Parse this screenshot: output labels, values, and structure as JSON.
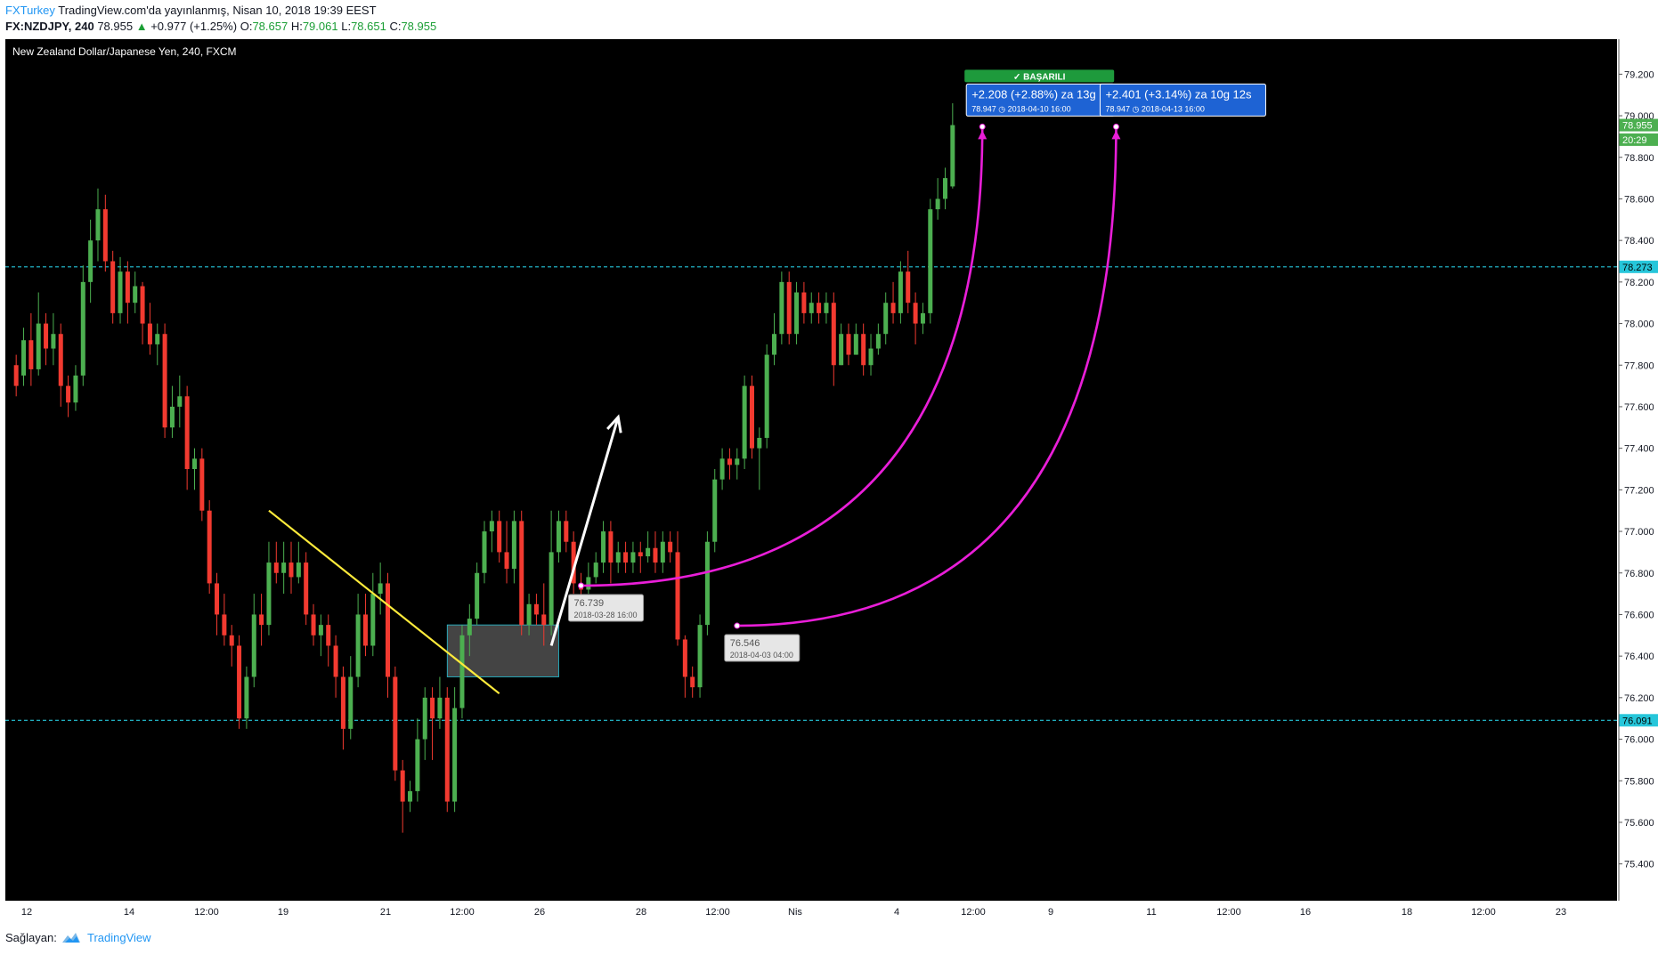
{
  "header": {
    "publisher": "FXTurkey",
    "published_text": "TradingView.com'da yayınlanmış, Nisan 10, 2018 19:39 EEST",
    "symbol": "FX:NZDJPY, 240",
    "last": "78.955",
    "change": "+0.977 (+1.25%)",
    "o_label": "O:",
    "o": "78.657",
    "h_label": "H:",
    "h": "79.061",
    "l_label": "L:",
    "l": "78.651",
    "c_label": "C:",
    "c": "78.955"
  },
  "footer": {
    "provider_label": "Sağlayan:",
    "provider_name": "TradingView"
  },
  "colors": {
    "background": "#000000",
    "bull": "#4caf50",
    "bear": "#f23a30",
    "level_line": "#26c6da",
    "trendline": "#ffeb3b",
    "arc": "#e91ed8",
    "arrow": "#ffffff",
    "zone": "#444444",
    "badge_green": "#1e9a3c",
    "badge_blue": "#1e63d4"
  },
  "chart_data": {
    "type": "candlestick",
    "title": "New Zealand Dollar/Japanese Yen, 240, FXCM",
    "ylim": [
      75.3,
      79.3
    ],
    "y_ticks": [
      "79.200",
      "79.000",
      "78.800",
      "78.600",
      "78.400",
      "78.200",
      "78.000",
      "77.800",
      "77.600",
      "77.400",
      "77.200",
      "77.000",
      "76.800",
      "76.600",
      "76.400",
      "76.200",
      "76.000",
      "75.800",
      "75.600",
      "75.400"
    ],
    "x_ticks": [
      "12",
      "14",
      "12:00",
      "19",
      "21",
      "12:00",
      "26",
      "28",
      "12:00",
      "Nis",
      "4",
      "12:00",
      "9",
      "11",
      "12:00",
      "16",
      "18",
      "12:00",
      "23"
    ],
    "price_labels": {
      "last": "78.955",
      "countdown": "20:29",
      "level_high": "78.273",
      "level_low": "76.091"
    },
    "levels": [
      78.273,
      76.091
    ],
    "candles": [
      [
        77.8,
        77.7,
        77.85,
        77.65
      ],
      [
        77.75,
        77.92,
        77.98,
        77.7
      ],
      [
        77.92,
        77.78,
        78.05,
        77.7
      ],
      [
        77.78,
        78.0,
        78.15,
        77.75
      ],
      [
        78.0,
        77.88,
        78.05,
        77.8
      ],
      [
        77.88,
        77.95,
        78.05,
        77.8
      ],
      [
        77.95,
        77.7,
        78.0,
        77.6
      ],
      [
        77.7,
        77.62,
        77.75,
        77.55
      ],
      [
        77.62,
        77.75,
        77.8,
        77.58
      ],
      [
        77.75,
        78.2,
        78.28,
        77.7
      ],
      [
        78.2,
        78.4,
        78.5,
        78.1
      ],
      [
        78.4,
        78.55,
        78.65,
        78.3
      ],
      [
        78.55,
        78.3,
        78.62,
        78.25
      ],
      [
        78.3,
        78.05,
        78.35,
        78.0
      ],
      [
        78.05,
        78.25,
        78.32,
        78.0
      ],
      [
        78.25,
        78.1,
        78.3,
        78.0
      ],
      [
        78.1,
        78.18,
        78.25,
        78.05
      ],
      [
        78.18,
        78.0,
        78.2,
        77.9
      ],
      [
        78.0,
        77.9,
        78.1,
        77.85
      ],
      [
        77.9,
        77.95,
        78.0,
        77.8
      ],
      [
        77.95,
        77.5,
        78.0,
        77.45
      ],
      [
        77.5,
        77.6,
        77.7,
        77.45
      ],
      [
        77.6,
        77.65,
        77.75,
        77.5
      ],
      [
        77.65,
        77.3,
        77.7,
        77.2
      ],
      [
        77.3,
        77.35,
        77.4,
        77.2
      ],
      [
        77.35,
        77.1,
        77.4,
        77.05
      ],
      [
        77.1,
        76.75,
        77.15,
        76.7
      ],
      [
        76.75,
        76.6,
        76.8,
        76.5
      ],
      [
        76.6,
        76.5,
        76.7,
        76.45
      ],
      [
        76.5,
        76.45,
        76.55,
        76.35
      ],
      [
        76.45,
        76.1,
        76.5,
        76.05
      ],
      [
        76.1,
        76.3,
        76.35,
        76.05
      ],
      [
        76.3,
        76.6,
        76.7,
        76.25
      ],
      [
        76.6,
        76.55,
        76.7,
        76.45
      ],
      [
        76.55,
        76.85,
        76.95,
        76.5
      ],
      [
        76.85,
        76.8,
        76.95,
        76.75
      ],
      [
        76.8,
        76.85,
        76.95,
        76.7
      ],
      [
        76.85,
        76.78,
        76.95,
        76.7
      ],
      [
        76.78,
        76.85,
        76.95,
        76.75
      ],
      [
        76.85,
        76.6,
        76.9,
        76.55
      ],
      [
        76.6,
        76.5,
        76.65,
        76.45
      ],
      [
        76.5,
        76.55,
        76.6,
        76.4
      ],
      [
        76.55,
        76.45,
        76.6,
        76.35
      ],
      [
        76.45,
        76.3,
        76.5,
        76.2
      ],
      [
        76.3,
        76.05,
        76.35,
        75.95
      ],
      [
        76.05,
        76.3,
        76.4,
        76.0
      ],
      [
        76.3,
        76.6,
        76.7,
        76.25
      ],
      [
        76.6,
        76.45,
        76.7,
        76.4
      ],
      [
        76.45,
        76.7,
        76.8,
        76.4
      ],
      [
        76.7,
        76.75,
        76.85,
        76.6
      ],
      [
        76.75,
        76.3,
        76.8,
        76.2
      ],
      [
        76.3,
        75.85,
        76.35,
        75.8
      ],
      [
        75.85,
        75.7,
        75.9,
        75.55
      ],
      [
        75.7,
        75.75,
        75.8,
        75.65
      ],
      [
        75.75,
        76.0,
        76.1,
        75.7
      ],
      [
        76.0,
        76.2,
        76.25,
        75.9
      ],
      [
        76.2,
        76.1,
        76.25,
        75.9
      ],
      [
        76.1,
        76.2,
        76.3,
        76.05
      ],
      [
        76.2,
        75.7,
        76.25,
        75.65
      ],
      [
        75.7,
        76.15,
        76.25,
        75.65
      ],
      [
        76.15,
        76.5,
        76.55,
        76.1
      ],
      [
        76.5,
        76.58,
        76.65,
        76.4
      ],
      [
        76.58,
        76.8,
        76.85,
        76.55
      ],
      [
        76.8,
        77.0,
        77.05,
        76.75
      ],
      [
        77.0,
        77.05,
        77.1,
        76.9
      ],
      [
        77.05,
        76.9,
        77.1,
        76.85
      ],
      [
        76.9,
        76.82,
        77.05,
        76.75
      ],
      [
        76.82,
        77.05,
        77.1,
        76.75
      ],
      [
        77.05,
        76.55,
        77.1,
        76.5
      ],
      [
        76.55,
        76.65,
        76.7,
        76.5
      ],
      [
        76.65,
        76.6,
        76.7,
        76.55
      ],
      [
        76.6,
        76.55,
        76.75,
        76.45
      ],
      [
        76.55,
        76.9,
        77.1,
        76.5
      ],
      [
        76.9,
        77.05,
        77.1,
        76.85
      ],
      [
        77.05,
        76.95,
        77.1,
        76.9
      ],
      [
        76.95,
        76.75,
        77.0,
        76.7
      ],
      [
        76.75,
        76.72,
        76.8,
        76.65
      ],
      [
        76.72,
        76.78,
        76.85,
        76.7
      ],
      [
        76.78,
        76.85,
        76.9,
        76.75
      ],
      [
        76.85,
        77.0,
        77.05,
        76.8
      ],
      [
        77.0,
        76.85,
        77.05,
        76.75
      ],
      [
        76.85,
        76.9,
        76.95,
        76.8
      ],
      [
        76.9,
        76.85,
        76.95,
        76.8
      ],
      [
        76.85,
        76.9,
        76.95,
        76.8
      ],
      [
        76.9,
        76.88,
        76.95,
        76.8
      ],
      [
        76.88,
        76.92,
        77.0,
        76.85
      ],
      [
        76.92,
        76.85,
        77.0,
        76.8
      ],
      [
        76.85,
        76.95,
        77.0,
        76.8
      ],
      [
        76.95,
        76.9,
        77.0,
        76.85
      ],
      [
        76.9,
        76.48,
        77.0,
        76.45
      ],
      [
        76.48,
        76.3,
        76.5,
        76.2
      ],
      [
        76.3,
        76.25,
        76.35,
        76.2
      ],
      [
        76.25,
        76.55,
        76.6,
        76.2
      ],
      [
        76.55,
        76.95,
        77.0,
        76.5
      ],
      [
        76.95,
        77.25,
        77.3,
        76.9
      ],
      [
        77.25,
        77.35,
        77.4,
        77.2
      ],
      [
        77.35,
        77.32,
        77.4,
        77.25
      ],
      [
        77.32,
        77.35,
        77.4,
        77.25
      ],
      [
        77.35,
        77.7,
        77.75,
        77.3
      ],
      [
        77.7,
        77.4,
        77.75,
        77.35
      ],
      [
        77.4,
        77.45,
        77.5,
        77.2
      ],
      [
        77.45,
        77.85,
        77.9,
        77.4
      ],
      [
        77.85,
        77.95,
        78.05,
        77.8
      ],
      [
        77.95,
        78.2,
        78.25,
        77.9
      ],
      [
        78.2,
        77.95,
        78.25,
        77.9
      ],
      [
        77.95,
        78.15,
        78.2,
        77.9
      ],
      [
        78.15,
        78.05,
        78.2,
        78.0
      ],
      [
        78.05,
        78.1,
        78.15,
        78.0
      ],
      [
        78.1,
        78.05,
        78.15,
        78.0
      ],
      [
        78.05,
        78.1,
        78.15,
        78.0
      ],
      [
        78.1,
        77.8,
        78.15,
        77.7
      ],
      [
        77.8,
        77.95,
        78.0,
        77.8
      ],
      [
        77.95,
        77.85,
        78.0,
        77.8
      ],
      [
        77.85,
        77.95,
        78.0,
        77.85
      ],
      [
        77.95,
        77.8,
        78.0,
        77.75
      ],
      [
        77.8,
        77.88,
        77.95,
        77.75
      ],
      [
        77.88,
        77.95,
        78.0,
        77.85
      ],
      [
        77.95,
        78.1,
        78.15,
        77.9
      ],
      [
        78.1,
        78.05,
        78.2,
        78.0
      ],
      [
        78.05,
        78.25,
        78.3,
        78.0
      ],
      [
        78.25,
        78.1,
        78.35,
        78.05
      ],
      [
        78.1,
        78.0,
        78.15,
        77.9
      ],
      [
        78.0,
        78.05,
        78.1,
        77.95
      ],
      [
        78.05,
        78.55,
        78.6,
        78.0
      ],
      [
        78.55,
        78.6,
        78.7,
        78.5
      ],
      [
        78.6,
        78.7,
        78.75,
        78.55
      ],
      [
        78.66,
        78.955,
        79.06,
        78.65
      ]
    ],
    "annotations": [
      {
        "type": "trendline",
        "from": [
          "2018-03-19 16:00",
          77.1
        ],
        "to": [
          "2018-03-26 20:00",
          76.22
        ]
      },
      {
        "type": "zone",
        "from": [
          "2018-03-23 16:00",
          76.55
        ],
        "to": [
          "2018-03-28 04:00",
          76.3
        ]
      },
      {
        "type": "arrow",
        "from": [
          "2018-03-28 00:00",
          76.45
        ],
        "to": [
          "2018-03-29 12:00",
          77.55
        ]
      },
      {
        "type": "arc",
        "from": [
          "2018-03-28 16:00",
          76.739
        ],
        "to": [
          "2018-04-10 16:00",
          78.947
        ]
      },
      {
        "type": "arc",
        "from": [
          "2018-04-03 04:00",
          76.546
        ],
        "to": [
          "2018-04-13 16:00",
          78.947
        ]
      }
    ],
    "point_labels": [
      {
        "price": "76.739",
        "date": "2018-03-28 16:00"
      },
      {
        "price": "76.546",
        "date": "2018-04-03 04:00"
      }
    ],
    "badges": [
      {
        "status": "BAŞARILI",
        "change": "+2.208 (+2.88%) za 13g",
        "price": "78.947",
        "date": "2018-04-10  16:00"
      },
      {
        "change": "+2.401 (+3.14%) za 10g 12s",
        "price": "78.947",
        "date": "2018-04-13  16:00"
      }
    ]
  }
}
